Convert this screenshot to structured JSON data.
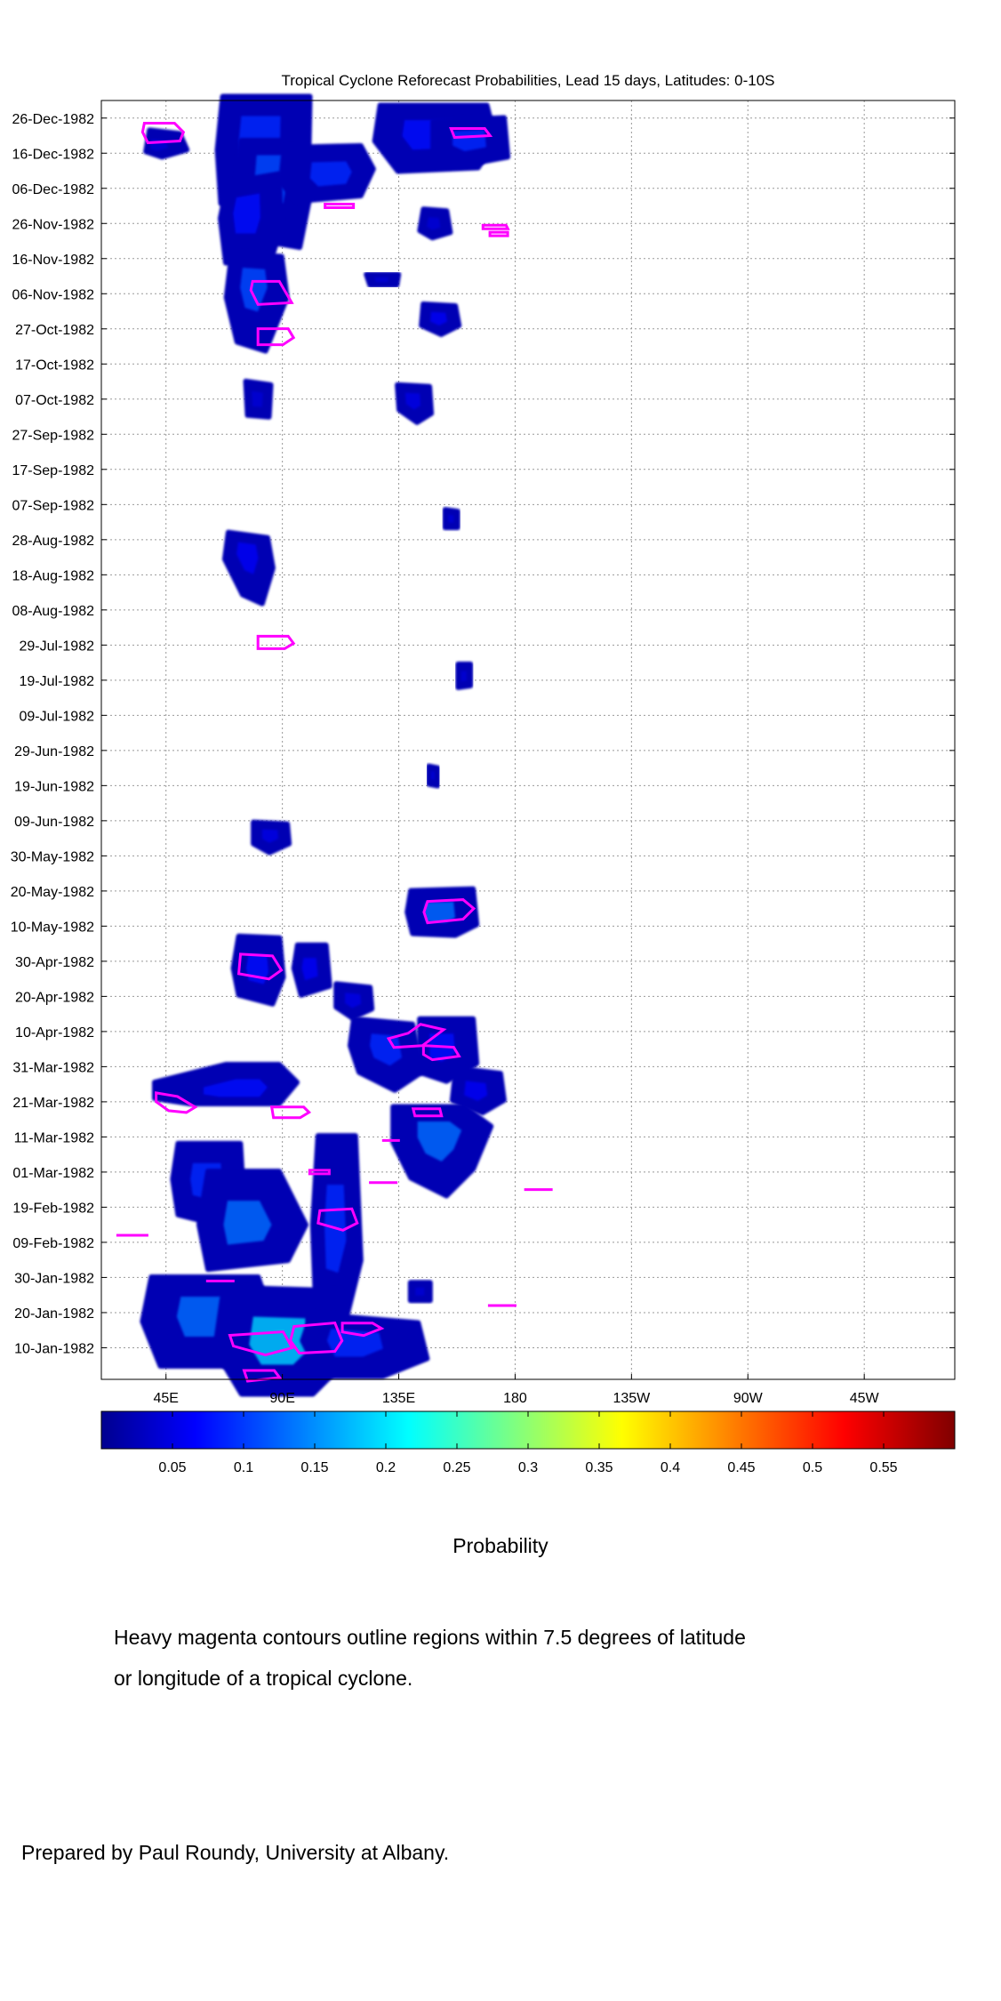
{
  "chart_data": {
    "type": "heatmap",
    "title": "Tropical Cyclone Reforecast Probabilities, Lead 15 days, Latitudes: 0-10S",
    "x_tick_labels": [
      "45E",
      "90E",
      "135E",
      "180",
      "135W",
      "90W",
      "45W"
    ],
    "x_ticks_deg_east": [
      45,
      90,
      135,
      180,
      225,
      270,
      315
    ],
    "xlim_deg_east": [
      20,
      350
    ],
    "y_tick_labels": [
      "26-Dec-1982",
      "16-Dec-1982",
      "06-Dec-1982",
      "26-Nov-1982",
      "16-Nov-1982",
      "06-Nov-1982",
      "27-Oct-1982",
      "17-Oct-1982",
      "07-Oct-1982",
      "27-Sep-1982",
      "17-Sep-1982",
      "07-Sep-1982",
      "28-Aug-1982",
      "18-Aug-1982",
      "08-Aug-1982",
      "29-Jul-1982",
      "19-Jul-1982",
      "09-Jul-1982",
      "29-Jun-1982",
      "19-Jun-1982",
      "09-Jun-1982",
      "30-May-1982",
      "20-May-1982",
      "10-May-1982",
      "30-Apr-1982",
      "20-Apr-1982",
      "10-Apr-1982",
      "31-Mar-1982",
      "21-Mar-1982",
      "11-Mar-1982",
      "01-Mar-1982",
      "19-Feb-1982",
      "09-Feb-1982",
      "30-Jan-1982",
      "20-Jan-1982",
      "10-Jan-1982"
    ],
    "ylim": [
      "01-Jan-1982",
      "31-Dec-1982"
    ],
    "colorbar": {
      "label": "Probability",
      "tick_labels": [
        "0.05",
        "0.1",
        "0.15",
        "0.2",
        "0.25",
        "0.3",
        "0.35",
        "0.4",
        "0.45",
        "0.5",
        "0.55"
      ],
      "ticks": [
        0.05,
        0.1,
        0.15,
        0.2,
        0.25,
        0.3,
        0.35,
        0.4,
        0.45,
        0.5,
        0.55
      ],
      "range": [
        0.0,
        0.6
      ],
      "colormap": "jet"
    },
    "grid": true,
    "regions": [
      {
        "lon": 40,
        "date": "18-Dec-1982",
        "p": 0.05
      },
      {
        "lon": 80,
        "date": "22-Dec-1982",
        "p": 0.1
      },
      {
        "lon": 85,
        "date": "12-Dec-1982",
        "p": 0.12
      },
      {
        "lon": 75,
        "date": "30-Nov-1982",
        "p": 0.08
      },
      {
        "lon": 78,
        "date": "10-Nov-1982",
        "p": 0.12
      },
      {
        "lon": 110,
        "date": "10-Dec-1982",
        "p": 0.1
      },
      {
        "lon": 145,
        "date": "22-Dec-1982",
        "p": 0.08
      },
      {
        "lon": 162,
        "date": "20-Dec-1982",
        "p": 0.1
      },
      {
        "lon": 148,
        "date": "26-Nov-1982",
        "p": 0.05
      },
      {
        "lon": 128,
        "date": "10-Nov-1982",
        "p": 0.05
      },
      {
        "lon": 150,
        "date": "30-Oct-1982",
        "p": 0.07
      },
      {
        "lon": 80,
        "date": "07-Oct-1982",
        "p": 0.05
      },
      {
        "lon": 140,
        "date": "07-Oct-1982",
        "p": 0.06
      },
      {
        "lon": 155,
        "date": "03-Sep-1982",
        "p": 0.05
      },
      {
        "lon": 76,
        "date": "25-Aug-1982",
        "p": 0.07
      },
      {
        "lon": 85,
        "date": "05-Jun-1982",
        "p": 0.06
      },
      {
        "lon": 148,
        "date": "22-Jun-1982",
        "p": 0.05
      },
      {
        "lon": 160,
        "date": "20-Jul-1982",
        "p": 0.05
      },
      {
        "lon": 150,
        "date": "14-May-1982",
        "p": 0.14
      },
      {
        "lon": 80,
        "date": "28-Apr-1982",
        "p": 0.08
      },
      {
        "lon": 100,
        "date": "28-Apr-1982",
        "p": 0.07
      },
      {
        "lon": 117,
        "date": "19-Apr-1982",
        "p": 0.06
      },
      {
        "lon": 130,
        "date": "06-Apr-1982",
        "p": 0.1
      },
      {
        "lon": 150,
        "date": "06-Apr-1982",
        "p": 0.08
      },
      {
        "lon": 164,
        "date": "24-Mar-1982",
        "p": 0.07
      },
      {
        "lon": 75,
        "date": "24-Mar-1982",
        "p": 0.08
      },
      {
        "lon": 150,
        "date": "12-Mar-1982",
        "p": 0.14
      },
      {
        "lon": 60,
        "date": "27-Feb-1982",
        "p": 0.1
      },
      {
        "lon": 75,
        "date": "14-Feb-1982",
        "p": 0.14
      },
      {
        "lon": 110,
        "date": "14-Feb-1982",
        "p": 0.1
      },
      {
        "lon": 60,
        "date": "20-Jan-1982",
        "p": 0.14
      },
      {
        "lon": 88,
        "date": "12-Jan-1982",
        "p": 0.2
      },
      {
        "lon": 115,
        "date": "12-Jan-1982",
        "p": 0.1
      },
      {
        "lon": 143,
        "date": "26-Jan-1982",
        "p": 0.05
      }
    ],
    "annotation": "Heavy magenta contours outline regions within 7.5 degrees of latitude or longitude of a tropical cyclone."
  },
  "footer": {
    "note_line1": "Heavy magenta contours outline regions within 7.5 degrees of latitude",
    "note_line2": "or longitude of a tropical cyclone.",
    "credit": "Prepared by Paul Roundy, University at Albany."
  },
  "colors": {
    "contour": "#ff00ff",
    "base_blob": "#0a14a8"
  }
}
